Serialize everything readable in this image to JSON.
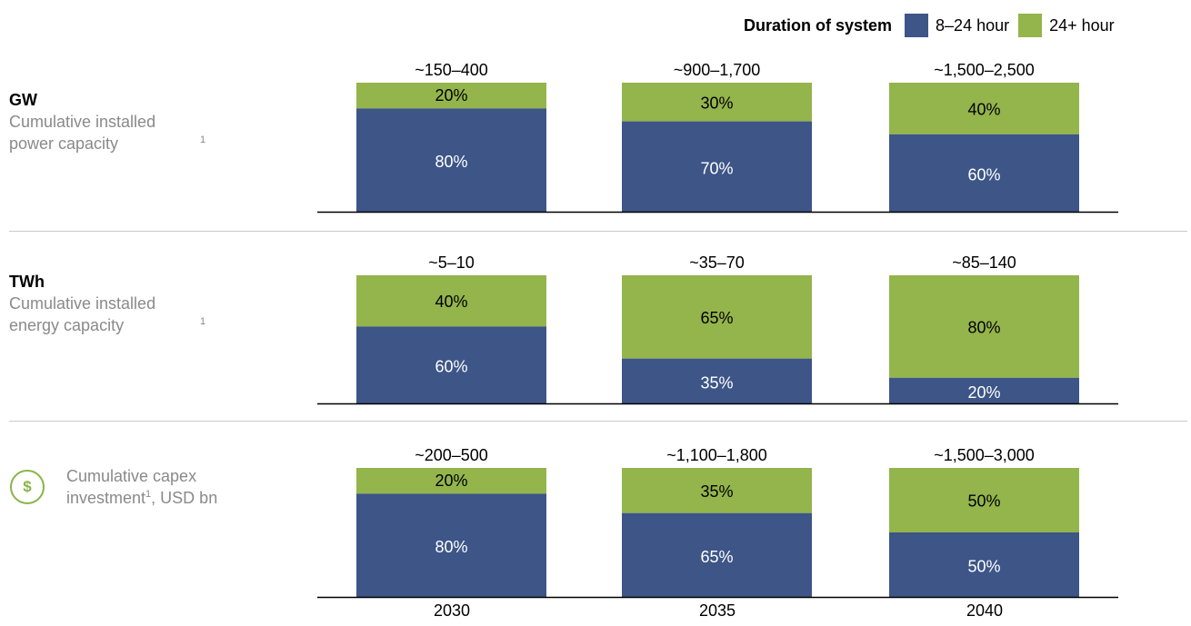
{
  "legend": {
    "title": "Duration of system",
    "items": [
      {
        "label": "8–24 hour",
        "color": "#3d5587"
      },
      {
        "label": "24+ hour",
        "color": "#94b44c"
      }
    ]
  },
  "colors": {
    "lower": "#3d5587",
    "upper": "#94b44c",
    "axis": "#000000",
    "divider": "#c9c9c9",
    "icon": "#8ab447"
  },
  "chart_data": [
    {
      "type": "bar",
      "stacked": true,
      "unit": "GW",
      "description": "Cumulative installed power capacity",
      "footnote": "1",
      "categories": [
        "2030",
        "2035",
        "2040"
      ],
      "totals": [
        "~150–400",
        "~900–1,700",
        "~1,500–2,500"
      ],
      "series": [
        {
          "name": "8–24 hour",
          "values": [
            80,
            70,
            60
          ]
        },
        {
          "name": "24+ hour",
          "values": [
            20,
            30,
            40
          ]
        }
      ],
      "ylim": [
        0,
        100
      ]
    },
    {
      "type": "bar",
      "stacked": true,
      "unit": "TWh",
      "description": "Cumulative installed energy capacity",
      "footnote": "1",
      "categories": [
        "2030",
        "2035",
        "2040"
      ],
      "totals": [
        "~5–10",
        "~35–70",
        "~85–140"
      ],
      "series": [
        {
          "name": "8–24 hour",
          "values": [
            60,
            35,
            20
          ]
        },
        {
          "name": "24+ hour",
          "values": [
            40,
            65,
            80
          ]
        }
      ],
      "ylim": [
        0,
        100
      ]
    },
    {
      "type": "bar",
      "stacked": true,
      "icon": "dollar-icon",
      "icon_glyph": "$",
      "description_part1": "Cumulative capex",
      "description_part2a": "investment",
      "footnote": "1",
      "description_part2b": ", USD bn",
      "categories": [
        "2030",
        "2035",
        "2040"
      ],
      "totals": [
        "~200–500",
        "~1,100–1,800",
        "~1,500–3,000"
      ],
      "series": [
        {
          "name": "8–24 hour",
          "values": [
            80,
            65,
            50
          ]
        },
        {
          "name": "24+ hour",
          "values": [
            20,
            35,
            50
          ]
        }
      ],
      "ylim": [
        0,
        100
      ]
    }
  ]
}
